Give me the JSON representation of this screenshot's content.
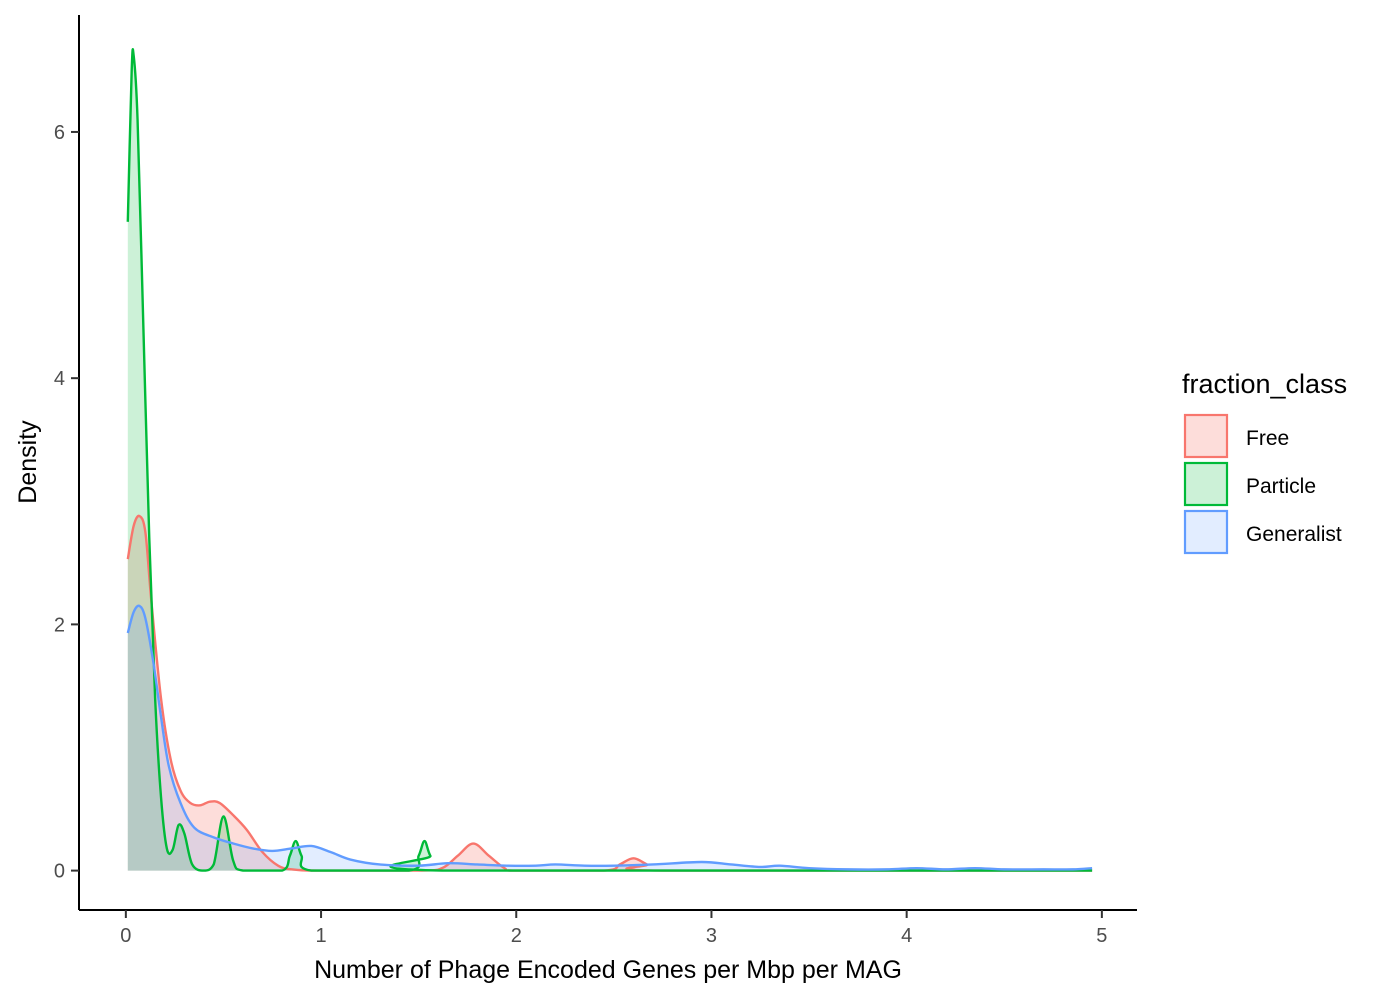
{
  "chart_data": {
    "type": "area",
    "title": "",
    "xlabel": "Number of Phage Encoded Genes per Mbp per MAG",
    "ylabel": "Density",
    "xlim": [
      -0.24,
      5.18
    ],
    "ylim": [
      -0.32,
      6.95
    ],
    "x_ticks": [
      0,
      1,
      2,
      3,
      4,
      5
    ],
    "x_tick_labels": [
      "0",
      "1",
      "2",
      "3",
      "4",
      "5"
    ],
    "y_ticks": [
      0,
      2,
      4,
      6
    ],
    "y_tick_labels": [
      "0",
      "2",
      "4",
      "6"
    ],
    "grid": false,
    "legend": {
      "title": "fraction_class",
      "position": "right",
      "entries": [
        "Free",
        "Particle",
        "Generalist"
      ]
    },
    "series": [
      {
        "name": "Free",
        "line_color": "#F8766D",
        "fill_color": "rgba(248,118,109,0.25)",
        "points": [
          [
            0.01,
            2.53
          ],
          [
            0.04,
            2.8
          ],
          [
            0.07,
            2.88
          ],
          [
            0.1,
            2.75
          ],
          [
            0.13,
            2.2
          ],
          [
            0.18,
            1.4
          ],
          [
            0.23,
            0.9
          ],
          [
            0.28,
            0.65
          ],
          [
            0.33,
            0.55
          ],
          [
            0.38,
            0.53
          ],
          [
            0.43,
            0.56
          ],
          [
            0.48,
            0.55
          ],
          [
            0.55,
            0.45
          ],
          [
            0.62,
            0.33
          ],
          [
            0.7,
            0.15
          ],
          [
            0.78,
            0.04
          ],
          [
            0.85,
            0.01
          ],
          [
            1.0,
            0.0
          ],
          [
            1.5,
            0.0
          ],
          [
            1.62,
            0.02
          ],
          [
            1.7,
            0.12
          ],
          [
            1.78,
            0.22
          ],
          [
            1.86,
            0.12
          ],
          [
            1.94,
            0.02
          ],
          [
            2.0,
            0.0
          ],
          [
            2.45,
            0.0
          ],
          [
            2.53,
            0.05
          ],
          [
            2.6,
            0.1
          ],
          [
            2.67,
            0.05
          ],
          [
            2.75,
            0.0
          ],
          [
            4.95,
            0.0
          ]
        ]
      },
      {
        "name": "Particle",
        "line_color": "#00BA38",
        "fill_color": "rgba(0,186,56,0.2)",
        "points": [
          [
            0.01,
            5.27
          ],
          [
            0.03,
            6.5
          ],
          [
            0.04,
            6.62
          ],
          [
            0.06,
            6.1
          ],
          [
            0.09,
            4.4
          ],
          [
            0.12,
            2.7
          ],
          [
            0.15,
            1.4
          ],
          [
            0.18,
            0.6
          ],
          [
            0.21,
            0.18
          ],
          [
            0.24,
            0.17
          ],
          [
            0.27,
            0.37
          ],
          [
            0.3,
            0.3
          ],
          [
            0.34,
            0.05
          ],
          [
            0.4,
            0.0
          ],
          [
            0.45,
            0.05
          ],
          [
            0.5,
            0.44
          ],
          [
            0.55,
            0.08
          ],
          [
            0.6,
            0.0
          ],
          [
            0.8,
            0.0
          ],
          [
            0.84,
            0.12
          ],
          [
            0.87,
            0.24
          ],
          [
            0.9,
            0.12
          ],
          [
            0.95,
            0.0
          ],
          [
            1.45,
            0.0
          ],
          [
            1.5,
            0.12
          ],
          [
            1.53,
            0.24
          ],
          [
            1.56,
            0.12
          ],
          [
            1.62,
            0.0
          ],
          [
            4.95,
            0.0
          ]
        ]
      },
      {
        "name": "Generalist",
        "line_color": "#619CFF",
        "fill_color": "rgba(97,156,255,0.18)",
        "points": [
          [
            0.01,
            1.93
          ],
          [
            0.04,
            2.1
          ],
          [
            0.07,
            2.15
          ],
          [
            0.1,
            2.05
          ],
          [
            0.14,
            1.7
          ],
          [
            0.18,
            1.25
          ],
          [
            0.22,
            0.85
          ],
          [
            0.28,
            0.55
          ],
          [
            0.35,
            0.35
          ],
          [
            0.45,
            0.27
          ],
          [
            0.55,
            0.22
          ],
          [
            0.65,
            0.18
          ],
          [
            0.75,
            0.16
          ],
          [
            0.85,
            0.18
          ],
          [
            0.95,
            0.2
          ],
          [
            1.05,
            0.15
          ],
          [
            1.15,
            0.09
          ],
          [
            1.3,
            0.05
          ],
          [
            1.5,
            0.04
          ],
          [
            1.65,
            0.06
          ],
          [
            1.8,
            0.05
          ],
          [
            1.95,
            0.04
          ],
          [
            2.1,
            0.04
          ],
          [
            2.2,
            0.05
          ],
          [
            2.35,
            0.04
          ],
          [
            2.5,
            0.04
          ],
          [
            2.7,
            0.05
          ],
          [
            2.95,
            0.07
          ],
          [
            3.1,
            0.05
          ],
          [
            3.25,
            0.03
          ],
          [
            3.35,
            0.04
          ],
          [
            3.5,
            0.02
          ],
          [
            3.7,
            0.01
          ],
          [
            3.9,
            0.01
          ],
          [
            4.05,
            0.02
          ],
          [
            4.2,
            0.01
          ],
          [
            4.35,
            0.02
          ],
          [
            4.5,
            0.01
          ],
          [
            4.7,
            0.01
          ],
          [
            4.85,
            0.01
          ],
          [
            4.95,
            0.02
          ]
        ]
      }
    ]
  }
}
